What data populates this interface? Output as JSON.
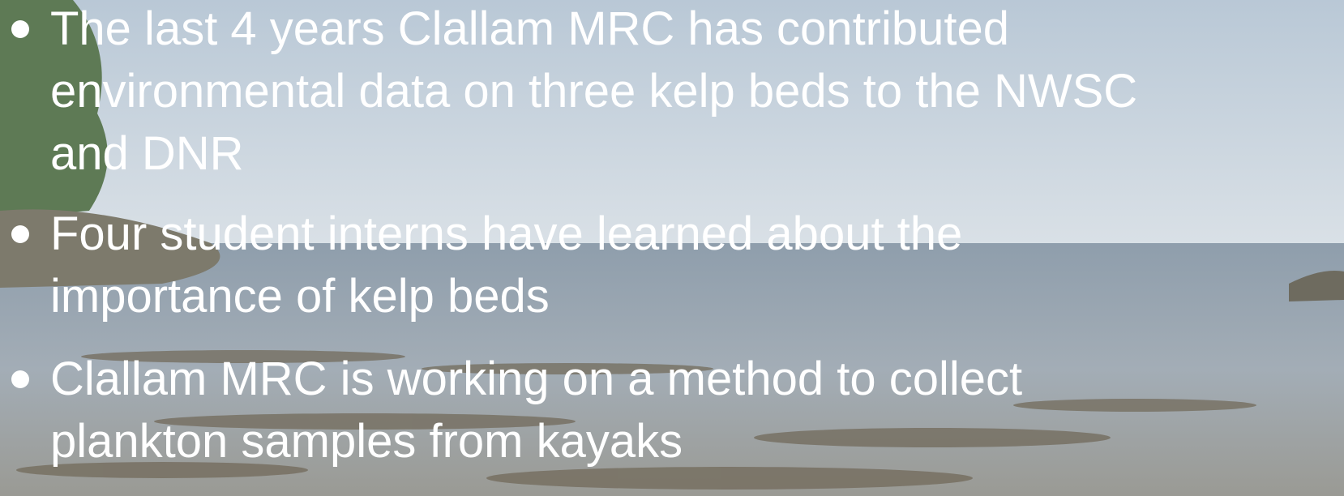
{
  "bullets": [
    {
      "lines": [
        "The last 4 years Clallam MRC has contributed",
        "environmental data on three kelp beds to the NWSC",
        "and DNR"
      ]
    },
    {
      "lines": [
        "Four student interns have learned about the",
        "importance of kelp beds"
      ]
    },
    {
      "lines": [
        "Clallam MRC is working on a method to collect",
        "plankton samples from kayaks"
      ]
    }
  ]
}
